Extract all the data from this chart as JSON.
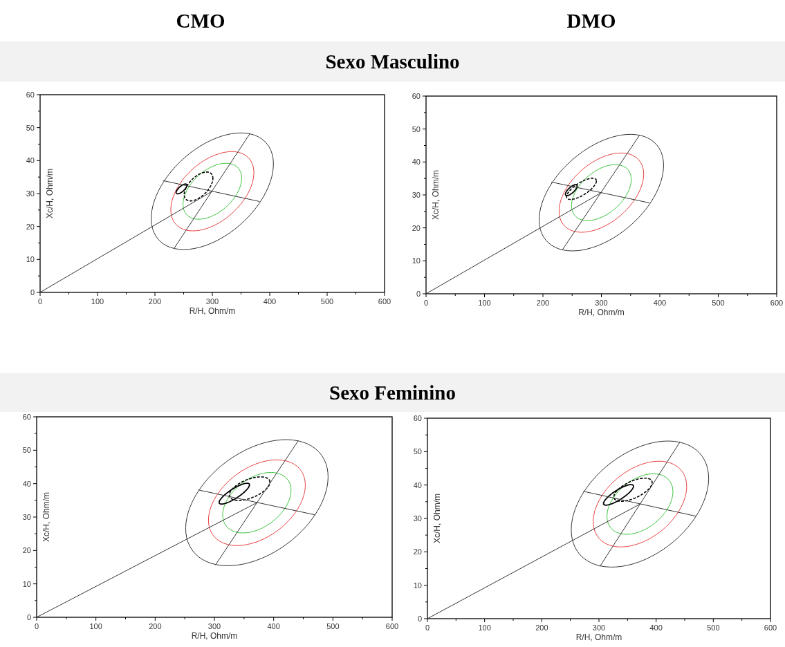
{
  "chart_data": [
    {
      "type": "line",
      "title": "CMO",
      "subtitle": "Sexo Masculino",
      "xlabel": "R/H, Ohm/m",
      "ylabel": "Xc/H, Ohm/m",
      "xlim": [
        0,
        600
      ],
      "ylim": [
        0,
        60
      ],
      "xticks": [
        0,
        {
          "value": 50,
          "label": null
        },
        100,
        {
          "value": 150,
          "label": null
        },
        200,
        {
          "value": 250,
          "label": null
        },
        300,
        {
          "value": 350,
          "label": null
        },
        400,
        {
          "value": 450,
          "label": null
        },
        500,
        {
          "value": 550,
          "label": null
        },
        600
      ],
      "yticks": [
        0,
        {
          "value": 5,
          "label": null
        },
        10,
        {
          "value": 15,
          "label": null
        },
        20,
        {
          "value": 25,
          "label": null
        },
        30,
        {
          "value": 35,
          "label": null
        },
        40,
        {
          "value": 45,
          "label": null
        },
        50,
        {
          "value": 55,
          "label": null
        },
        60
      ],
      "marker": "none",
      "series": [
        {
          "type": "line",
          "color": "#333333",
          "line_style": "solid",
          "x": [
            233.5,
            365.2
          ],
          "values": [
            13.4,
            48.1
          ]
        },
        {
          "type": "line",
          "color": "#333333",
          "line_style": "solid",
          "x": [
            214.7,
            381.9
          ],
          "values": [
            33.9,
            27.6
          ]
        },
        {
          "type": "line",
          "color": "#333333",
          "line_style": "solid",
          "x": [
            0,
            300
          ],
          "values": [
            0,
            30.7
          ]
        }
      ]
    },
    {
      "type": "line",
      "title": "DMO",
      "xlabel": "R/H, Ohm/m",
      "ylabel": "Xc/H, Ohm/m",
      "xlim": [
        0,
        600
      ],
      "ylim": [
        0,
        60
      ],
      "xticks": [
        0,
        {
          "value": 50,
          "label": null
        },
        100,
        {
          "value": 150,
          "label": null
        },
        200,
        {
          "value": 250,
          "label": null
        },
        300,
        {
          "value": 350,
          "label": null
        },
        400,
        {
          "value": 450,
          "label": null
        },
        500,
        {
          "value": 550,
          "label": null
        },
        600
      ],
      "yticks": [
        0,
        {
          "value": 5,
          "label": null
        },
        10,
        {
          "value": 15,
          "label": null
        },
        20,
        {
          "value": 25,
          "label": null
        },
        30,
        {
          "value": 35,
          "label": null
        },
        40,
        {
          "value": 45,
          "label": null
        },
        50,
        {
          "value": 55,
          "label": null
        },
        60
      ],
      "marker": "none",
      "series": [
        {
          "type": "line",
          "color": "#333333",
          "line_style": "solid",
          "x": [
            233.5,
            365.2
          ],
          "values": [
            13.4,
            48.1
          ]
        },
        {
          "type": "line",
          "color": "#333333",
          "line_style": "solid",
          "x": [
            214.7,
            381.9
          ],
          "values": [
            33.9,
            27.6
          ]
        },
        {
          "type": "line",
          "color": "#333333",
          "line_style": "solid",
          "x": [
            0,
            300
          ],
          "values": [
            0,
            30.7
          ]
        }
      ]
    },
    {
      "type": "line",
      "subtitle": "Sexo Feminino",
      "xlabel": "R/H, Ohm/m",
      "ylabel": "Xc/H, Ohm/m",
      "xlim": [
        0,
        600
      ],
      "ylim": [
        0,
        60
      ],
      "xticks": [
        0,
        {
          "value": 50,
          "label": null
        },
        100,
        {
          "value": 150,
          "label": null
        },
        200,
        {
          "value": 250,
          "label": null
        },
        300,
        {
          "value": 350,
          "label": null
        },
        400,
        {
          "value": 450,
          "label": null
        },
        500,
        {
          "value": 550,
          "label": null
        },
        600
      ],
      "yticks": [
        0,
        {
          "value": 5,
          "label": null
        },
        10,
        {
          "value": 15,
          "label": null
        },
        20,
        {
          "value": 25,
          "label": null
        },
        30,
        {
          "value": 35,
          "label": null
        },
        40,
        {
          "value": 45,
          "label": null
        },
        50,
        {
          "value": 55,
          "label": null
        },
        60
      ],
      "marker": "none",
      "series": [
        {
          "type": "line",
          "color": "#333333",
          "line_style": "solid",
          "x": [
            301.9,
            441.4
          ],
          "values": [
            15.7,
            52.8
          ]
        },
        {
          "type": "line",
          "color": "#333333",
          "line_style": "solid",
          "x": [
            273.2,
            468.9
          ],
          "values": [
            38.1,
            30.7
          ]
        },
        {
          "type": "line",
          "color": "#333333",
          "line_style": "solid",
          "x": [
            0,
            371.7
          ],
          "values": [
            0,
            34.3
          ]
        }
      ]
    },
    {
      "type": "line",
      "xlabel": "R/H, Ohm/m",
      "ylabel": "Xc/H, Ohm/m",
      "xlim": [
        0,
        600
      ],
      "ylim": [
        0,
        60
      ],
      "xticks": [
        0,
        {
          "value": 50,
          "label": null
        },
        100,
        {
          "value": 150,
          "label": null
        },
        200,
        {
          "value": 250,
          "label": null
        },
        300,
        {
          "value": 350,
          "label": null
        },
        400,
        {
          "value": 450,
          "label": null
        },
        500,
        {
          "value": 550,
          "label": null
        },
        600
      ],
      "yticks": [
        0,
        {
          "value": 5,
          "label": null
        },
        10,
        {
          "value": 15,
          "label": null
        },
        20,
        {
          "value": 25,
          "label": null
        },
        30,
        {
          "value": 35,
          "label": null
        },
        40,
        {
          "value": 45,
          "label": null
        },
        50,
        {
          "value": 55,
          "label": null
        },
        60
      ],
      "marker": "none",
      "series": [
        {
          "type": "line",
          "color": "#333333",
          "line_style": "solid",
          "x": [
            301.9,
            441.4
          ],
          "values": [
            15.7,
            52.8
          ]
        },
        {
          "type": "line",
          "color": "#333333",
          "line_style": "solid",
          "x": [
            273.2,
            468.9
          ],
          "values": [
            38.1,
            30.7
          ]
        },
        {
          "type": "line",
          "color": "#333333",
          "line_style": "solid",
          "x": [
            0,
            371.8
          ],
          "values": [
            0,
            34.3
          ]
        }
      ]
    }
  ]
}
